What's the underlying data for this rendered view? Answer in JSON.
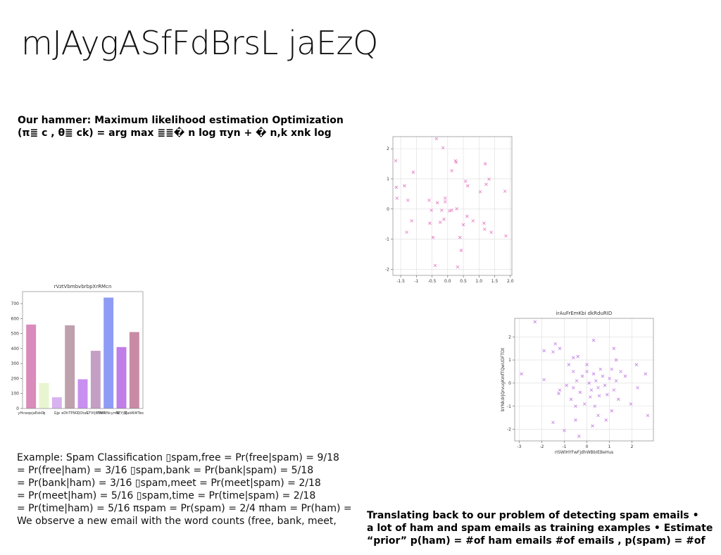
{
  "title": "mJAygASfFdBrsL jaEzQ",
  "intro": [
    "Our hammer: Maximum likelihood estimation Optimization",
    "(π≣ c , θ≣ ck) = arg max ≣≣� n log πyn + � n,k xnk log"
  ],
  "example": [
    "Example: Spam Classification ▯spam,free = Pr(free|spam) = 9/18",
    "= Pr(free|ham) = 3/16 ▯spam,bank = Pr(bank|spam) = 5/18",
    "= Pr(bank|ham) = 3/16 ▯spam,meet = Pr(meet|spam) = 2/18",
    "= Pr(meet|ham) = 5/16 ▯spam,time = Pr(time|spam) = 2/18",
    "= Pr(time|ham) = 5/16 πspam = Pr(spam) = 2/4 πham = Pr(ham) =",
    "We observe a new email with the word counts (free, bank, meet,"
  ],
  "closing": [
    "Translating back to our problem of detecting spam emails •",
    "a lot of ham and spam emails as training examples • Estimate",
    "“prior” p(ham) = #of ham emails #of emails , p(spam) = #of"
  ],
  "chart_data": [
    {
      "type": "bar",
      "title": "rVztVbmbvbrbpXrRMcn",
      "categories": [
        "yHcwqejaEekD",
        "q",
        "Gjp",
        "eDhTPNO",
        "QOtaS",
        "CFXfjIBWN",
        "IPeWNcymN",
        "NEYjBJ",
        "ZabNWTwc"
      ],
      "values": [
        560,
        170,
        75,
        555,
        195,
        385,
        740,
        410,
        510
      ],
      "colors": [
        "#d98bbb",
        "#e9f5d0",
        "#d9b3f0",
        "#bfa0ad",
        "#c88ef0",
        "#c49fc4",
        "#8e9cf5",
        "#c07ee8",
        "#c98aa5"
      ],
      "ylim": [
        0,
        780
      ],
      "yticks": [
        0,
        100,
        200,
        300,
        400,
        500,
        600,
        700
      ],
      "grid": false
    },
    {
      "type": "scatter",
      "color": "#e377c2",
      "grid": true,
      "xlim": [
        -1.75,
        2.05
      ],
      "ylim": [
        -2.2,
        2.4
      ],
      "xticks": [
        -1.5,
        -1.0,
        -0.5,
        {
          "value": 0,
          "label": "0.0"
        },
        0.5,
        {
          "value": 1,
          "label": "1.0"
        },
        1.5,
        {
          "value": 2,
          "label": "2.0"
        }
      ],
      "yticks": [
        -2,
        -1,
        0,
        1,
        2
      ],
      "x": [
        -1.66,
        -0.36,
        -0.15,
        0.25,
        0.27,
        1.2,
        -1.64,
        -1.38,
        -1.1,
        0.13,
        -1.27,
        -1.62,
        1.32,
        0.57,
        0.64,
        1.04,
        1.23,
        1.83,
        -0.59,
        -0.33,
        -0.08,
        -0.08,
        -0.52,
        -0.19,
        0.13,
        0.29,
        -0.12,
        -0.24,
        -0.57,
        0.06,
        0.62,
        0.81,
        0.5,
        1.16,
        1.18,
        1.39,
        1.86,
        -1.31,
        -1.15,
        -0.47,
        0.39,
        0.43,
        -0.4,
        0.32
      ],
      "values": [
        1.6,
        2.33,
        2.03,
        1.6,
        1.55,
        1.5,
        0.72,
        0.77,
        1.22,
        1.27,
        0.29,
        0.36,
        0.99,
        0.92,
        0.77,
        0.57,
        0.82,
        0.59,
        0.29,
        0.21,
        0.36,
        0.24,
        -0.04,
        -0.04,
        -0.04,
        0.01,
        -0.34,
        -0.44,
        -0.47,
        -0.06,
        -0.24,
        -0.39,
        -0.52,
        -0.47,
        -0.67,
        -0.77,
        -0.89,
        -0.77,
        -0.39,
        -0.94,
        -0.94,
        -1.37,
        -1.87,
        -1.92
      ]
    },
    {
      "type": "scatter",
      "title": "irAuFrEmKbi dkRduRID",
      "xlabel": "rISWlHYFwFjdhWBbIEBeHus",
      "ylabel": "bYNkdrjQrvugKmfTQwUDFTDt",
      "color": "#c27be0",
      "grid": true,
      "xlim": [
        -3.2,
        2.95
      ],
      "ylim": [
        -2.5,
        2.8
      ],
      "xticks": [
        -3,
        -2,
        -1,
        0,
        1,
        2
      ],
      "yticks": [
        -2,
        -1,
        0,
        1,
        2
      ],
      "x": [
        -2.3,
        -1.9,
        -1.5,
        -1.4,
        -1.2,
        -2.9,
        -1.9,
        -1.2,
        -1.25,
        -0.6,
        -0.4,
        0.3,
        1.2,
        1.3,
        2.2,
        2.6,
        2.7,
        1.95,
        2.25,
        -1.5,
        -1.0,
        -0.5,
        -0.35,
        0.25,
        0.5,
        0.85,
        1.1,
        -0.8,
        -0.6,
        -0.45,
        -0.3,
        -0.2,
        0,
        0,
        0.1,
        0.2,
        0.3,
        0.4,
        0.5,
        0.6,
        0.7,
        0.8,
        0.9,
        1.0,
        1.1,
        1.2,
        1.3,
        1.5,
        1.4,
        -0.7,
        -0.5,
        -0.1,
        0.15,
        0.35,
        -0.9,
        -0.6,
        1.7,
        0.55
      ],
      "values": [
        2.65,
        1.4,
        1.35,
        1.7,
        1.5,
        0.4,
        0.15,
        -0.3,
        -0.45,
        1.1,
        1.15,
        1.85,
        1.5,
        1.0,
        0.8,
        0.4,
        -1.4,
        -0.9,
        -0.2,
        -1.7,
        -2.05,
        -1.6,
        -2.3,
        -1.85,
        -1.4,
        -1.6,
        -1.2,
        0.8,
        0.5,
        0.1,
        -0.4,
        0.3,
        0.8,
        0.5,
        0,
        -0.3,
        0.4,
        0.1,
        -0.2,
        0.6,
        0.3,
        -0.1,
        -0.5,
        0.2,
        0.6,
        -0.3,
        0.1,
        0.5,
        -0.7,
        -0.7,
        -1.0,
        -0.9,
        -0.6,
        -1.0,
        -0.1,
        -0.2,
        0.3,
        -0.55
      ]
    }
  ]
}
